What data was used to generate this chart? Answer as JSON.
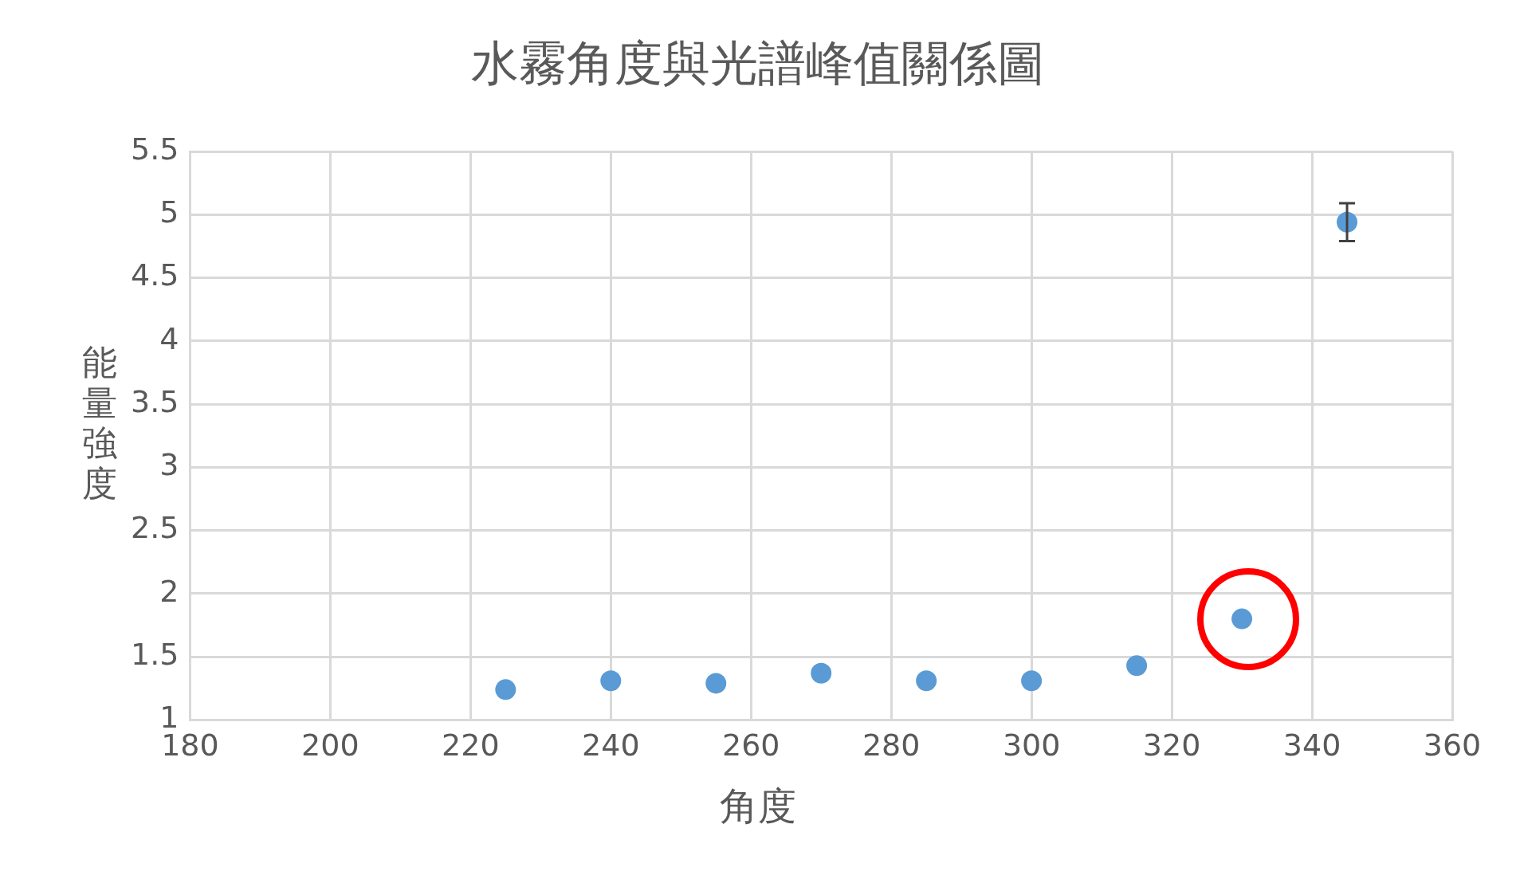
{
  "chart_data": {
    "type": "scatter",
    "title": "水霧角度與光譜峰值關係圖",
    "xlabel": "角度",
    "ylabel": "能量強度",
    "x": [
      225,
      240,
      255,
      270,
      285,
      300,
      315,
      330,
      345
    ],
    "values": [
      1.24,
      1.31,
      1.29,
      1.37,
      1.31,
      1.31,
      1.43,
      1.8,
      4.94
    ],
    "errors": [
      null,
      null,
      null,
      null,
      null,
      null,
      null,
      null,
      0.15
    ],
    "color": "#5b9bd5",
    "marker": "circle",
    "grid": true,
    "legend": false,
    "xlim": [
      180,
      360
    ],
    "xticks": [
      180,
      200,
      220,
      240,
      260,
      280,
      300,
      320,
      340,
      360
    ],
    "ylim": [
      1,
      5.5
    ],
    "yticks": [
      1,
      1.5,
      2,
      2.5,
      3,
      3.5,
      4,
      4.5,
      5,
      5.5
    ]
  }
}
